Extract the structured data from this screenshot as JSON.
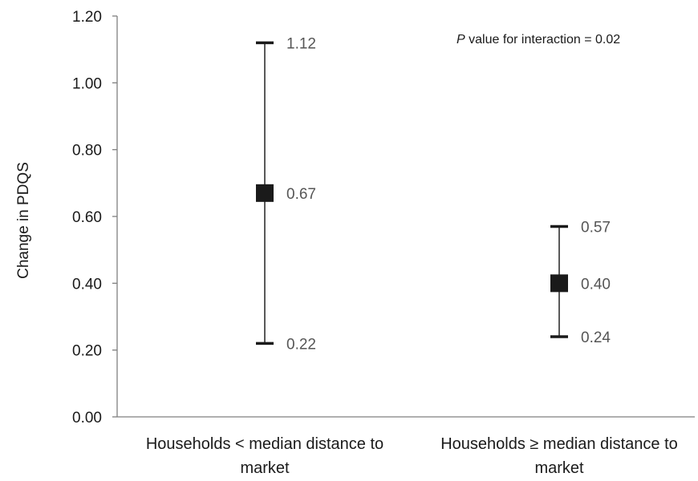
{
  "chart_data": {
    "type": "scatter",
    "ylabel": "Change in PDQS",
    "ylim": [
      0,
      1.2
    ],
    "yticks": [
      "0.00",
      "0.20",
      "0.40",
      "0.60",
      "0.80",
      "1.00",
      "1.20"
    ],
    "categories": [
      [
        "Households < median distance to",
        "market"
      ],
      [
        "Households ≥ median distance to",
        "market"
      ]
    ],
    "points": [
      {
        "estimate": 0.67,
        "lower": 0.22,
        "upper": 1.12,
        "estimate_label": "0.67",
        "lower_label": "0.22",
        "upper_label": "1.12"
      },
      {
        "estimate": 0.4,
        "lower": 0.24,
        "upper": 0.57,
        "estimate_label": "0.40",
        "lower_label": "0.24",
        "upper_label": "0.57"
      }
    ],
    "annotation": {
      "italic": "P",
      "rest": " value for interaction = 0.02"
    },
    "grid": false,
    "colors": {
      "marker": "#1a1a1a",
      "errorbar": "#595959",
      "axis": "#7f7f7f"
    }
  }
}
